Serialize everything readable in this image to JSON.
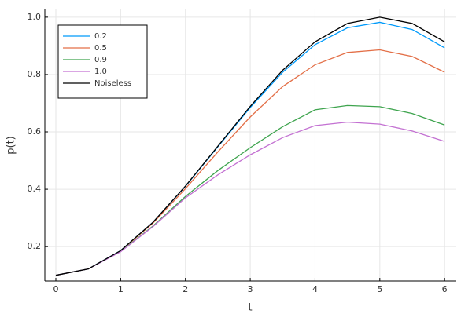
{
  "chart_data": {
    "type": "line",
    "xlabel": "t",
    "ylabel": "p(t)",
    "x": [
      0,
      0.5,
      1,
      1.5,
      2,
      2.5,
      3,
      3.5,
      4,
      4.5,
      5,
      5.5,
      6
    ],
    "series": [
      {
        "name": "0.2",
        "color": "#009afa",
        "values": [
          0.1,
          0.122,
          0.186,
          0.285,
          0.41,
          0.548,
          0.685,
          0.808,
          0.904,
          0.963,
          0.982,
          0.957,
          0.893
        ]
      },
      {
        "name": "0.5",
        "color": "#e36f47",
        "values": [
          0.1,
          0.122,
          0.185,
          0.282,
          0.402,
          0.53,
          0.652,
          0.758,
          0.834,
          0.877,
          0.886,
          0.863,
          0.808
        ]
      },
      {
        "name": "0.9",
        "color": "#3ea44e",
        "values": [
          0.1,
          0.122,
          0.183,
          0.272,
          0.375,
          0.465,
          0.545,
          0.618,
          0.677,
          0.692,
          0.688,
          0.664,
          0.624
        ]
      },
      {
        "name": "1.0",
        "color": "#c371d2",
        "values": [
          0.1,
          0.122,
          0.182,
          0.27,
          0.37,
          0.45,
          0.52,
          0.58,
          0.622,
          0.634,
          0.627,
          0.603,
          0.567
        ]
      },
      {
        "name": "Noiseless",
        "color": "#000000",
        "values": [
          0.1,
          0.122,
          0.186,
          0.285,
          0.411,
          0.55,
          0.689,
          0.815,
          0.914,
          0.978,
          1.0,
          0.978,
          0.914
        ]
      }
    ],
    "xlim": [
      -0.17,
      6.18
    ],
    "xticks": [
      0,
      1,
      2,
      3,
      4,
      5,
      6
    ],
    "ylim": [
      0.08,
      1.027
    ],
    "yticks": [
      0.2,
      0.4,
      0.6,
      0.8,
      {
        "value": 1,
        "label": "1.0"
      }
    ],
    "grid": true,
    "legend": "top-left"
  }
}
